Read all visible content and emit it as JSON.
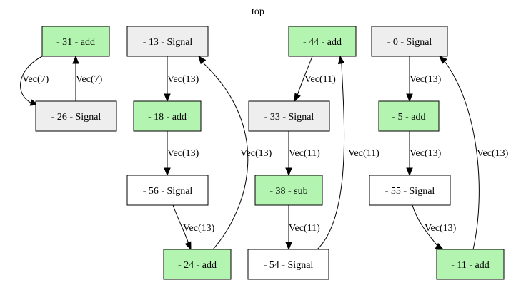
{
  "title": "top",
  "colors": {
    "add": "#b3f5b0",
    "sub": "#b3f5b0",
    "signal_gray": "#eeeeee",
    "signal_white": "#ffffff",
    "stroke": "#000000"
  },
  "nodes": [
    {
      "id": "n31",
      "label": "- 31 - add",
      "fill": "add"
    },
    {
      "id": "n26",
      "label": "- 26 - Signal",
      "fill": "signal_gray"
    },
    {
      "id": "n13",
      "label": "- 13 - Signal",
      "fill": "signal_gray"
    },
    {
      "id": "n18",
      "label": "- 18 - add",
      "fill": "add"
    },
    {
      "id": "n56",
      "label": "- 56 - Signal",
      "fill": "signal_white"
    },
    {
      "id": "n24",
      "label": "- 24 - add",
      "fill": "add"
    },
    {
      "id": "n44",
      "label": "- 44 - add",
      "fill": "add"
    },
    {
      "id": "n33",
      "label": "- 33 - Signal",
      "fill": "signal_gray"
    },
    {
      "id": "n38",
      "label": "- 38 - sub",
      "fill": "sub"
    },
    {
      "id": "n54",
      "label": "- 54 - Signal",
      "fill": "signal_white"
    },
    {
      "id": "n0",
      "label": "- 0 - Signal",
      "fill": "signal_gray"
    },
    {
      "id": "n5",
      "label": "- 5 - add",
      "fill": "add"
    },
    {
      "id": "n55",
      "label": "- 55 - Signal",
      "fill": "signal_white"
    },
    {
      "id": "n11",
      "label": "- 11 - add",
      "fill": "add"
    }
  ],
  "edges": [
    {
      "id": "e31_26",
      "from": "n31",
      "to": "n26",
      "label": "Vec(7)"
    },
    {
      "id": "e26_31",
      "from": "n26",
      "to": "n31",
      "label": "Vec(7)"
    },
    {
      "id": "e13_18",
      "from": "n13",
      "to": "n18",
      "label": "Vec(13)"
    },
    {
      "id": "e18_56",
      "from": "n18",
      "to": "n56",
      "label": "Vec(13)"
    },
    {
      "id": "e56_24",
      "from": "n56",
      "to": "n24",
      "label": "Vec(13)"
    },
    {
      "id": "e24_13",
      "from": "n24",
      "to": "n13",
      "label": "Vec(13)"
    },
    {
      "id": "e44_33",
      "from": "n44",
      "to": "n33",
      "label": "Vec(11)"
    },
    {
      "id": "e33_38",
      "from": "n33",
      "to": "n38",
      "label": "Vec(11)"
    },
    {
      "id": "e38_54",
      "from": "n38",
      "to": "n54",
      "label": "Vec(11)"
    },
    {
      "id": "e54_44",
      "from": "n54",
      "to": "n44",
      "label": "Vec(11)"
    },
    {
      "id": "e0_5",
      "from": "n0",
      "to": "n5",
      "label": "Vec(13)"
    },
    {
      "id": "e5_55",
      "from": "n5",
      "to": "n55",
      "label": "Vec(13)"
    },
    {
      "id": "e55_11",
      "from": "n55",
      "to": "n11",
      "label": "Vec(13)"
    },
    {
      "id": "e11_0",
      "from": "n11",
      "to": "n0",
      "label": "Vec(13)"
    }
  ]
}
